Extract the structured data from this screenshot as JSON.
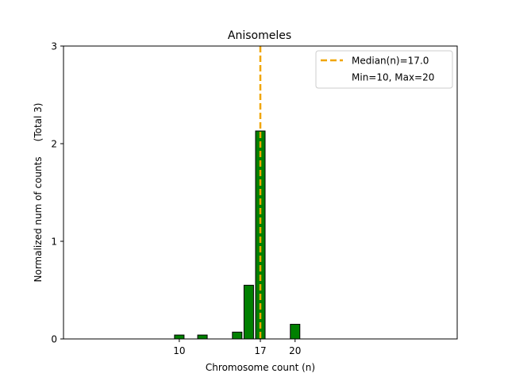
{
  "chart_data": {
    "type": "bar",
    "title": "Anisomeles",
    "xlabel": "Chromosome count (n)",
    "ylabel": "Normalized num of counts     (Total 3)",
    "bars": [
      {
        "x": 10,
        "value": 0.04
      },
      {
        "x": 12,
        "value": 0.04
      },
      {
        "x": 15,
        "value": 0.07
      },
      {
        "x": 16,
        "value": 0.55
      },
      {
        "x": 17,
        "value": 2.13
      },
      {
        "x": 20,
        "value": 0.15
      }
    ],
    "xlim": [
      0,
      34
    ],
    "ylim": [
      0,
      3
    ],
    "xticks": [
      "10",
      "17",
      "20"
    ],
    "xtick_values": [
      10,
      17,
      20
    ],
    "yticks": [
      "0",
      "1",
      "2",
      "3"
    ],
    "ytick_values": [
      0,
      1,
      2,
      3
    ],
    "median": 17,
    "legend": {
      "position": "top-right",
      "entries": [
        "Median(n)=17.0",
        "Min=10, Max=20"
      ]
    },
    "colors": {
      "bar_fill": "#008000",
      "bar_edge": "#000000",
      "median_line": "#f0a500"
    },
    "grid": false
  }
}
